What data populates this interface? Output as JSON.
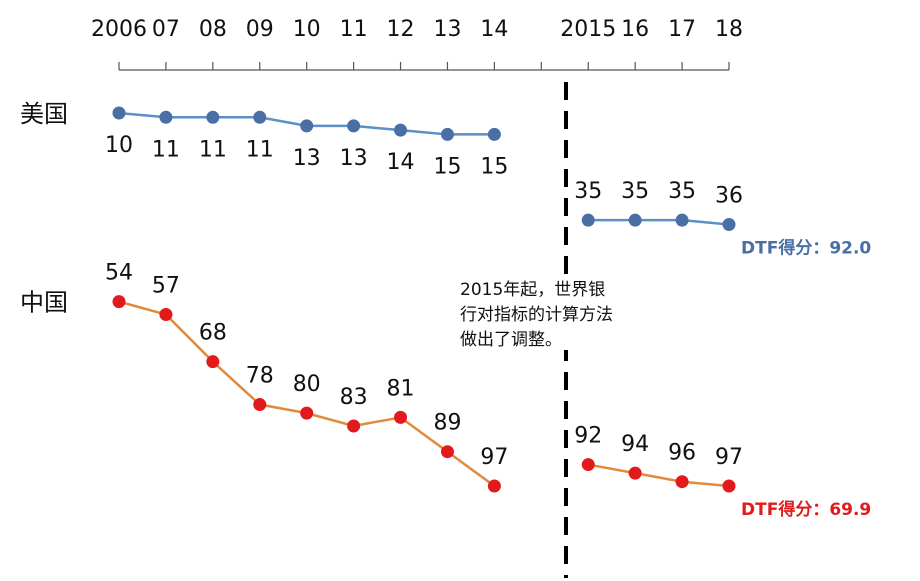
{
  "chart_data": {
    "type": "line",
    "categories": [
      "2006",
      "07",
      "08",
      "09",
      "10",
      "11",
      "12",
      "13",
      "14",
      null,
      "2015",
      "16",
      "17",
      "18"
    ],
    "series": [
      {
        "name": "美国",
        "color": "#5b8fc7",
        "marker_color": "#4a6fa5",
        "values": [
          10,
          11,
          11,
          11,
          13,
          13,
          14,
          15,
          15,
          null,
          35,
          35,
          35,
          36
        ],
        "note": "DTF得分：92.0"
      },
      {
        "name": "中国",
        "color": "#e08a3c",
        "marker_color": "#e31a1c",
        "values": [
          54,
          57,
          68,
          78,
          80,
          83,
          81,
          89,
          97,
          null,
          92,
          94,
          96,
          97
        ],
        "note": "DTF得分：69.9",
        "note_color": "#e31a1c"
      }
    ],
    "annotation": [
      "2015年起，世界银",
      "行对指标的计算方法",
      "做出了调整。"
    ],
    "y_inverted": true
  }
}
